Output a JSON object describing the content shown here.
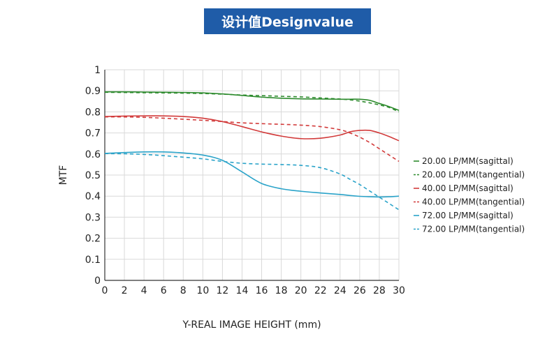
{
  "header": {
    "title": "设计值Designvalue"
  },
  "chart_data": {
    "type": "line",
    "title": "设计值Designvalue",
    "xlabel": "Y-REAL IMAGE HEIGHT (mm)",
    "ylabel": "MTF",
    "xlim": [
      0,
      30
    ],
    "ylim": [
      0,
      1
    ],
    "x_ticks": [
      "0",
      "2",
      "4",
      "6",
      "8",
      "10",
      "12",
      "14",
      "16",
      "18",
      "20",
      "22",
      "24",
      "26",
      "28",
      "30"
    ],
    "y_ticks": [
      "0",
      "0.1",
      "0.2",
      "0.3",
      "0.4",
      "0.5",
      "0.6",
      "0.7",
      "0.8",
      "0.9",
      "1"
    ],
    "grid": true,
    "legend_position": "right",
    "x": [
      0,
      2,
      4,
      6,
      8,
      10,
      12,
      14,
      16,
      18,
      20,
      22,
      24,
      25,
      26,
      27,
      28,
      29,
      30
    ],
    "series": [
      {
        "name": "20.00 LP/MM(sagittal)",
        "color": "#2e8b2e",
        "dash": "solid",
        "values": [
          0.895,
          0.895,
          0.894,
          0.893,
          0.892,
          0.89,
          0.885,
          0.878,
          0.87,
          0.865,
          0.862,
          0.861,
          0.86,
          0.86,
          0.86,
          0.855,
          0.84,
          0.825,
          0.807
        ]
      },
      {
        "name": "20.00 LP/MM(tangential)",
        "color": "#2e8b2e",
        "dash": "dashed",
        "values": [
          0.893,
          0.892,
          0.891,
          0.89,
          0.889,
          0.887,
          0.884,
          0.88,
          0.877,
          0.874,
          0.871,
          0.866,
          0.861,
          0.857,
          0.851,
          0.843,
          0.833,
          0.821,
          0.8
        ]
      },
      {
        "name": "40.00 LP/MM(sagittal)",
        "color": "#d23a3a",
        "dash": "solid",
        "values": [
          0.778,
          0.78,
          0.781,
          0.781,
          0.778,
          0.77,
          0.754,
          0.73,
          0.705,
          0.685,
          0.673,
          0.675,
          0.69,
          0.705,
          0.712,
          0.712,
          0.7,
          0.683,
          0.663
        ]
      },
      {
        "name": "40.00 LP/MM(tangential)",
        "color": "#d23a3a",
        "dash": "dashed",
        "values": [
          0.776,
          0.776,
          0.774,
          0.77,
          0.765,
          0.76,
          0.754,
          0.748,
          0.744,
          0.741,
          0.737,
          0.73,
          0.715,
          0.7,
          0.68,
          0.655,
          0.625,
          0.595,
          0.565
        ]
      },
      {
        "name": "72.00 LP/MM(sagittal)",
        "color": "#2aa3c9",
        "dash": "solid",
        "values": [
          0.603,
          0.607,
          0.61,
          0.61,
          0.605,
          0.595,
          0.57,
          0.515,
          0.46,
          0.435,
          0.423,
          0.415,
          0.408,
          0.403,
          0.399,
          0.397,
          0.396,
          0.397,
          0.4
        ]
      },
      {
        "name": "72.00 LP/MM(tangential)",
        "color": "#2aa3c9",
        "dash": "dashed",
        "values": [
          0.602,
          0.601,
          0.598,
          0.592,
          0.585,
          0.577,
          0.565,
          0.556,
          0.552,
          0.55,
          0.546,
          0.535,
          0.505,
          0.48,
          0.455,
          0.425,
          0.395,
          0.365,
          0.335
        ]
      }
    ]
  }
}
